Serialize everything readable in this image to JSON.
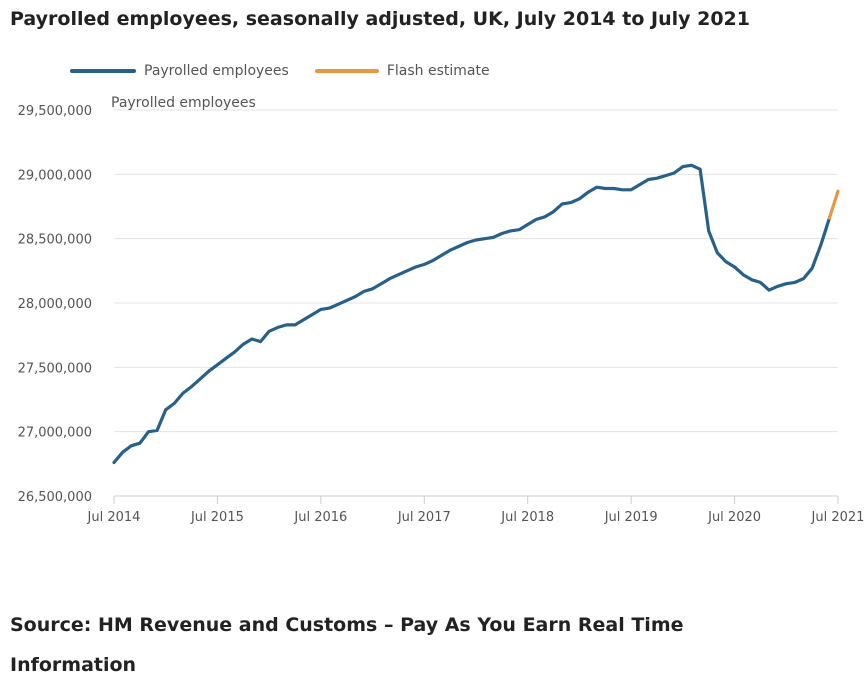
{
  "title": "Payrolled employees, seasonally adjusted, UK, July 2014 to July 2021",
  "source": "Source: HM Revenue and Customs – Pay As You Earn Real Time Information",
  "colors": {
    "employees": "#27608a",
    "flash": "#e8963f",
    "grid": "#e3e3e3",
    "axis": "#666666"
  },
  "chart_data": {
    "type": "line",
    "title": "Payrolled employees, seasonally adjusted, UK, July 2014 to July 2021",
    "ylabel": "Payrolled employees",
    "xlabel": "",
    "ylim": [
      26500000,
      29500000
    ],
    "yticks": [
      26500000,
      27000000,
      27500000,
      28000000,
      28500000,
      29000000,
      29500000
    ],
    "ytick_labels": [
      "26,500,000",
      "27,000,000",
      "27,500,000",
      "28,000,000",
      "28,500,000",
      "29,000,000",
      "29,500,000"
    ],
    "xticks": [
      "2014-07",
      "2015-07",
      "2016-07",
      "2017-07",
      "2018-07",
      "2019-07",
      "2020-07",
      "2021-07"
    ],
    "xtick_labels": [
      "Jul 2014",
      "Jul 2015",
      "Jul 2016",
      "Jul 2017",
      "Jul 2018",
      "Jul 2019",
      "Jul 2020",
      "Jul 2021"
    ],
    "grid": true,
    "legend_position": "top-left",
    "series": [
      {
        "name": "Payrolled employees",
        "x": [
          "2014-07",
          "2014-08",
          "2014-09",
          "2014-10",
          "2014-11",
          "2014-12",
          "2015-01",
          "2015-02",
          "2015-03",
          "2015-04",
          "2015-05",
          "2015-06",
          "2015-07",
          "2015-08",
          "2015-09",
          "2015-10",
          "2015-11",
          "2015-12",
          "2016-01",
          "2016-02",
          "2016-03",
          "2016-04",
          "2016-05",
          "2016-06",
          "2016-07",
          "2016-08",
          "2016-09",
          "2016-10",
          "2016-11",
          "2016-12",
          "2017-01",
          "2017-02",
          "2017-03",
          "2017-04",
          "2017-05",
          "2017-06",
          "2017-07",
          "2017-08",
          "2017-09",
          "2017-10",
          "2017-11",
          "2017-12",
          "2018-01",
          "2018-02",
          "2018-03",
          "2018-04",
          "2018-05",
          "2018-06",
          "2018-07",
          "2018-08",
          "2018-09",
          "2018-10",
          "2018-11",
          "2018-12",
          "2019-01",
          "2019-02",
          "2019-03",
          "2019-04",
          "2019-05",
          "2019-06",
          "2019-07",
          "2019-08",
          "2019-09",
          "2019-10",
          "2019-11",
          "2019-12",
          "2020-01",
          "2020-02",
          "2020-03",
          "2020-04",
          "2020-05",
          "2020-06",
          "2020-07",
          "2020-08",
          "2020-09",
          "2020-10",
          "2020-11",
          "2020-12",
          "2021-01",
          "2021-02",
          "2021-03",
          "2021-04",
          "2021-05",
          "2021-06"
        ],
        "values": [
          26760000,
          26840000,
          26890000,
          26910000,
          27000000,
          27010000,
          27170000,
          27220000,
          27300000,
          27350000,
          27410000,
          27470000,
          27520000,
          27570000,
          27620000,
          27680000,
          27720000,
          27700000,
          27780000,
          27810000,
          27830000,
          27830000,
          27870000,
          27910000,
          27950000,
          27960000,
          27990000,
          28020000,
          28050000,
          28090000,
          28110000,
          28150000,
          28190000,
          28220000,
          28250000,
          28280000,
          28300000,
          28330000,
          28370000,
          28410000,
          28440000,
          28470000,
          28490000,
          28500000,
          28510000,
          28540000,
          28560000,
          28570000,
          28610000,
          28650000,
          28670000,
          28710000,
          28770000,
          28780000,
          28810000,
          28860000,
          28900000,
          28890000,
          28890000,
          28880000,
          28880000,
          28920000,
          28960000,
          28970000,
          28990000,
          29010000,
          29060000,
          29070000,
          29040000,
          28560000,
          28390000,
          28320000,
          28280000,
          28220000,
          28180000,
          28160000,
          28100000,
          28130000,
          28150000,
          28160000,
          28190000,
          28270000,
          28450000,
          28660000
        ]
      },
      {
        "name": "Flash estimate",
        "x": [
          "2021-06",
          "2021-07"
        ],
        "values": [
          28660000,
          28870000
        ]
      }
    ]
  }
}
